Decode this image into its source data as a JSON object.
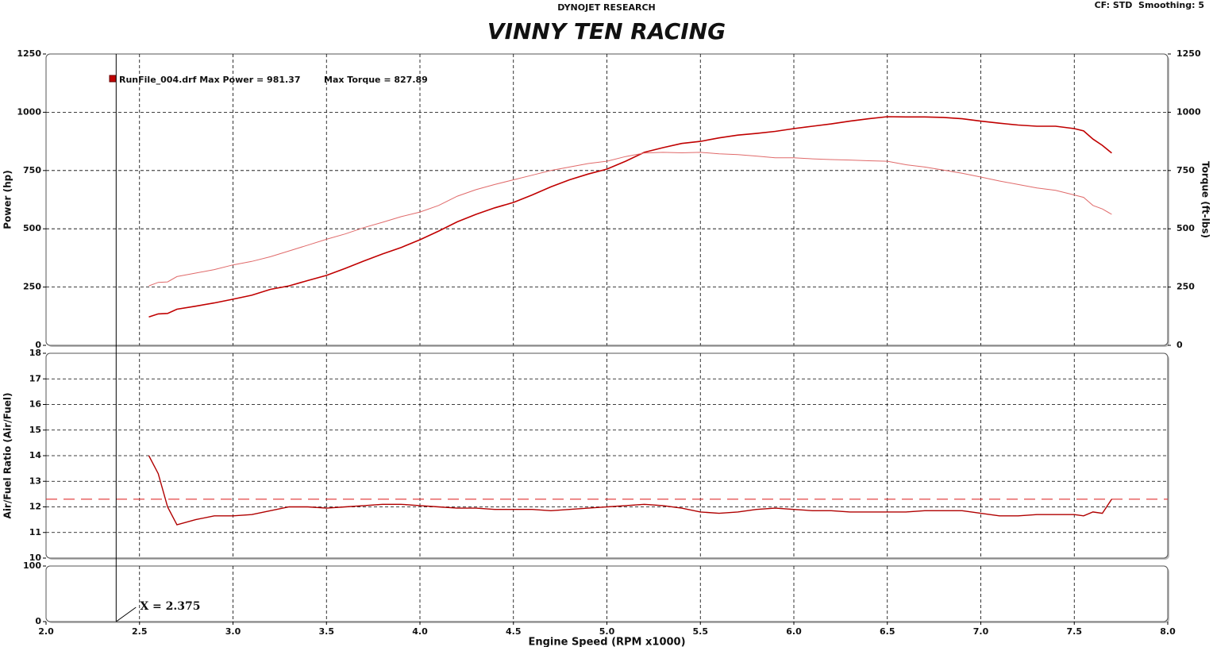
{
  "header": {
    "brand": "DYNOJET RESEARCH",
    "title": "VINNY TEN RACING",
    "settings": "CF: STD  Smoothing: 5"
  },
  "chart_data": [
    {
      "type": "line",
      "ylabel": "Power (hp)",
      "y2label": "Torque (ft-lbs)",
      "legend_text": "RunFile_004.drf Max Power = 981.37",
      "legend_text2": "Max Torque = 827.89",
      "xlim": [
        2,
        8
      ],
      "xticks": [
        2,
        2.5,
        3,
        3.5,
        4,
        4.5,
        5,
        5.5,
        6,
        6.5,
        7,
        7.5,
        8
      ],
      "ylim": [
        0,
        1250
      ],
      "yticks": [
        0,
        250,
        500,
        750,
        1000,
        1250
      ],
      "y2lim": [
        0,
        1250
      ],
      "y2ticks": [
        0,
        250,
        500,
        750,
        1000,
        1250
      ],
      "grid": true,
      "x": [
        2.55,
        2.6,
        2.65,
        2.7,
        2.8,
        2.9,
        3.0,
        3.1,
        3.2,
        3.3,
        3.4,
        3.5,
        3.6,
        3.7,
        3.8,
        3.9,
        4.0,
        4.1,
        4.2,
        4.3,
        4.4,
        4.5,
        4.6,
        4.7,
        4.8,
        4.9,
        5.0,
        5.1,
        5.2,
        5.3,
        5.4,
        5.5,
        5.6,
        5.7,
        5.8,
        5.9,
        6.0,
        6.1,
        6.2,
        6.3,
        6.4,
        6.5,
        6.6,
        6.7,
        6.8,
        6.9,
        7.0,
        7.1,
        7.2,
        7.3,
        7.4,
        7.5,
        7.55,
        7.6,
        7.65,
        7.7
      ],
      "series": [
        {
          "name": "Power",
          "color": "#c00000",
          "width": 1.6,
          "values": [
            122,
            135,
            137,
            155,
            168,
            182,
            198,
            215,
            240,
            255,
            278,
            300,
            330,
            362,
            392,
            420,
            453,
            490,
            530,
            562,
            590,
            613,
            645,
            680,
            710,
            735,
            756,
            790,
            828,
            848,
            866,
            875,
            890,
            902,
            909,
            918,
            930,
            940,
            950,
            962,
            972,
            981,
            980,
            980,
            978,
            972,
            962,
            953,
            945,
            940,
            940,
            930,
            920,
            885,
            858,
            825
          ]
        },
        {
          "name": "Torque",
          "color": "#e06a6a",
          "width": 1,
          "axis": "y2",
          "values": [
            255,
            270,
            272,
            295,
            310,
            325,
            345,
            360,
            380,
            405,
            430,
            455,
            478,
            505,
            528,
            552,
            572,
            600,
            640,
            668,
            690,
            710,
            730,
            750,
            765,
            780,
            790,
            810,
            825,
            828,
            826,
            828,
            822,
            818,
            812,
            805,
            805,
            800,
            797,
            795,
            792,
            790,
            775,
            765,
            752,
            738,
            722,
            705,
            690,
            675,
            665,
            645,
            635,
            600,
            585,
            562
          ]
        }
      ]
    },
    {
      "type": "line",
      "ylabel": "Air/Fuel Ratio (Air/Fuel)",
      "xlim": [
        2,
        8
      ],
      "xticks": [
        2,
        2.5,
        3,
        3.5,
        4,
        4.5,
        5,
        5.5,
        6,
        6.5,
        7,
        7.5,
        8
      ],
      "ylim": [
        10,
        18
      ],
      "yticks": [
        10,
        11,
        12,
        13,
        14,
        15,
        16,
        17,
        18
      ],
      "grid": true,
      "reference": {
        "value": 12.3,
        "color": "#e03030"
      },
      "x": [
        2.55,
        2.6,
        2.65,
        2.7,
        2.8,
        2.9,
        3.0,
        3.1,
        3.2,
        3.3,
        3.4,
        3.5,
        3.6,
        3.7,
        3.8,
        3.9,
        4.0,
        4.1,
        4.2,
        4.3,
        4.4,
        4.5,
        4.6,
        4.7,
        4.8,
        4.9,
        5.0,
        5.1,
        5.2,
        5.3,
        5.4,
        5.5,
        5.6,
        5.7,
        5.8,
        5.9,
        6.0,
        6.1,
        6.2,
        6.3,
        6.4,
        6.5,
        6.6,
        6.7,
        6.8,
        6.9,
        7.0,
        7.1,
        7.2,
        7.3,
        7.4,
        7.5,
        7.55,
        7.6,
        7.65,
        7.7
      ],
      "series": [
        {
          "name": "AFR",
          "color": "#b00000",
          "width": 1.4,
          "values": [
            14.0,
            13.3,
            12.0,
            11.3,
            11.5,
            11.65,
            11.65,
            11.7,
            11.85,
            12.0,
            12.0,
            11.95,
            12.0,
            12.05,
            12.1,
            12.1,
            12.05,
            12.0,
            11.95,
            11.95,
            11.9,
            11.9,
            11.9,
            11.85,
            11.9,
            11.95,
            12.0,
            12.05,
            12.1,
            12.05,
            11.95,
            11.8,
            11.75,
            11.8,
            11.9,
            11.95,
            11.9,
            11.85,
            11.85,
            11.8,
            11.8,
            11.8,
            11.8,
            11.85,
            11.85,
            11.85,
            11.75,
            11.65,
            11.65,
            11.7,
            11.7,
            11.7,
            11.65,
            11.8,
            11.75,
            12.3
          ]
        }
      ]
    },
    {
      "type": "line",
      "xlabel": "Engine Speed (RPM x1000)",
      "xlim": [
        2,
        8
      ],
      "xticks": [
        {
          "value": 2,
          "label": "2.0"
        },
        {
          "value": 2.5,
          "label": "2.5"
        },
        {
          "value": 3,
          "label": "3.0"
        },
        {
          "value": 3.5,
          "label": "3.5"
        },
        {
          "value": 4,
          "label": "4.0"
        },
        {
          "value": 4.5,
          "label": "4.5"
        },
        {
          "value": 5,
          "label": "5.0"
        },
        {
          "value": 5.5,
          "label": "5.5"
        },
        {
          "value": 6,
          "label": "6.0"
        },
        {
          "value": 6.5,
          "label": "6.5"
        },
        {
          "value": 7,
          "label": "7.0"
        },
        {
          "value": 7.5,
          "label": "7.5"
        },
        {
          "value": 8,
          "label": "8.0"
        }
      ],
      "ylim": [
        0,
        100
      ],
      "yticks": [
        0,
        100
      ],
      "grid": true,
      "cursor": {
        "x": 2.375,
        "label": "X = 2.375"
      },
      "series": []
    }
  ]
}
